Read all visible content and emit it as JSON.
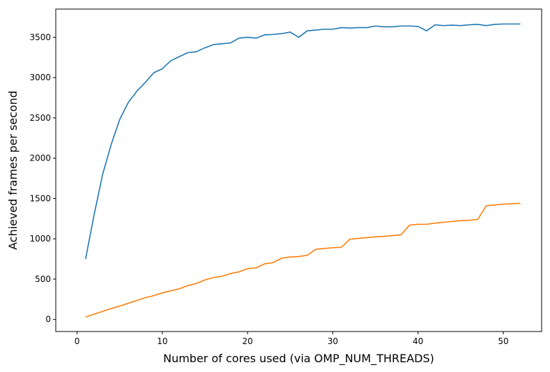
{
  "chart_data": {
    "type": "line",
    "title": "",
    "xlabel": "Number of cores used (via OMP_NUM_THREADS)",
    "ylabel": "Achieved frames per second",
    "xlim": [
      -2.5,
      54.5
    ],
    "ylim": [
      -150,
      3850
    ],
    "xticks": [
      0,
      10,
      20,
      30,
      40,
      50
    ],
    "yticks": [
      0,
      500,
      1000,
      1500,
      2000,
      2500,
      3000,
      3500
    ],
    "grid": false,
    "legend": "none",
    "series": [
      {
        "color": "#1f77b4",
        "x": [
          1,
          2,
          3,
          4,
          5,
          6,
          7,
          8,
          9,
          10,
          11,
          12,
          13,
          14,
          15,
          16,
          17,
          18,
          19,
          20,
          21,
          22,
          23,
          24,
          25,
          26,
          27,
          28,
          29,
          30,
          31,
          32,
          33,
          34,
          35,
          36,
          37,
          38,
          39,
          40,
          41,
          42,
          43,
          44,
          45,
          46,
          47,
          48,
          49,
          50,
          51,
          52
        ],
        "y": [
          750,
          1300,
          1800,
          2170,
          2480,
          2690,
          2830,
          2940,
          3060,
          3110,
          3210,
          3260,
          3310,
          3320,
          3370,
          3410,
          3420,
          3430,
          3490,
          3500,
          3490,
          3530,
          3535,
          3545,
          3565,
          3500,
          3580,
          3590,
          3600,
          3600,
          3620,
          3615,
          3620,
          3620,
          3640,
          3630,
          3630,
          3640,
          3640,
          3635,
          3580,
          3655,
          3645,
          3650,
          3645,
          3655,
          3660,
          3645,
          3660,
          3665,
          3665,
          3665
        ]
      },
      {
        "color": "#ff7f0e",
        "x": [
          1,
          2,
          3,
          4,
          5,
          6,
          7,
          8,
          9,
          10,
          11,
          12,
          13,
          14,
          15,
          16,
          17,
          18,
          19,
          20,
          21,
          22,
          23,
          24,
          25,
          26,
          27,
          28,
          29,
          30,
          31,
          32,
          33,
          34,
          35,
          36,
          37,
          38,
          39,
          40,
          41,
          42,
          43,
          44,
          45,
          46,
          47,
          48,
          49,
          50,
          51,
          52
        ],
        "y": [
          30,
          65,
          100,
          135,
          165,
          200,
          235,
          270,
          295,
          330,
          355,
          380,
          420,
          445,
          490,
          520,
          535,
          570,
          590,
          630,
          640,
          690,
          705,
          760,
          775,
          780,
          795,
          870,
          880,
          890,
          895,
          995,
          1005,
          1015,
          1025,
          1030,
          1040,
          1050,
          1170,
          1180,
          1180,
          1195,
          1205,
          1215,
          1225,
          1230,
          1240,
          1410,
          1420,
          1430,
          1435,
          1440
        ]
      }
    ]
  }
}
